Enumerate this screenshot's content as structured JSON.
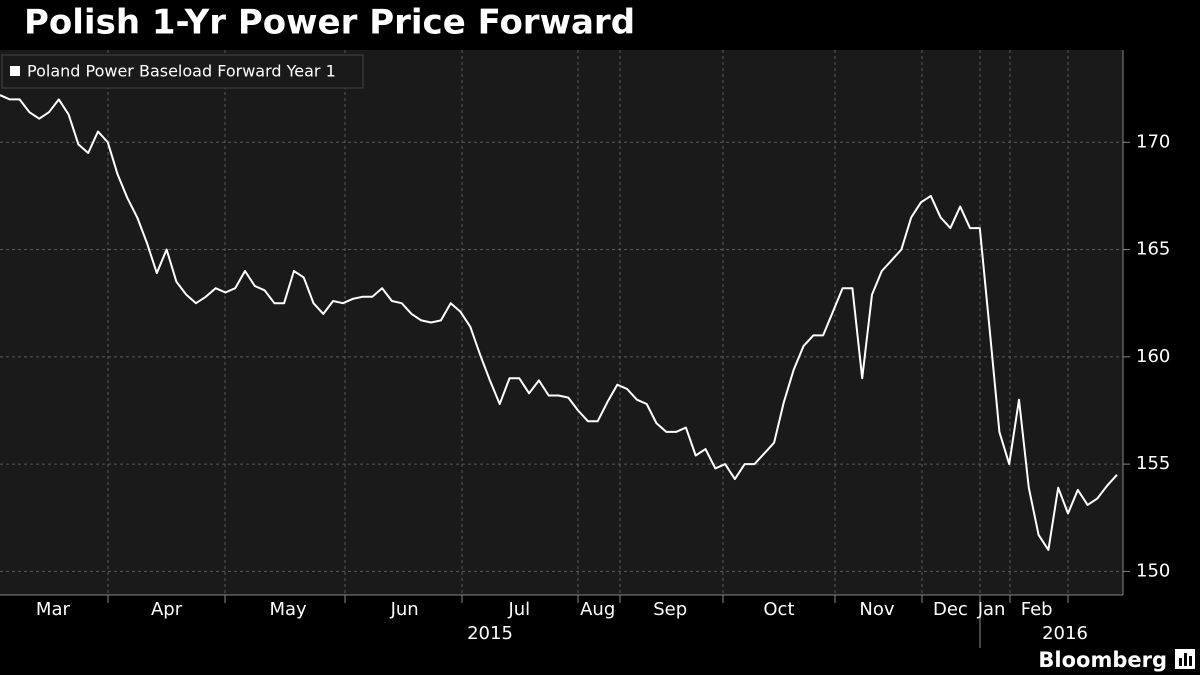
{
  "chart_data": {
    "type": "line",
    "title": "Polish 1-Yr Power Price Forward",
    "series": [
      {
        "name": "Poland Power Baseload Forward Year 1",
        "color": "#ffffff",
        "values": [
          172.2,
          172.0,
          172.0,
          171.4,
          171.1,
          171.4,
          172.0,
          171.3,
          169.9,
          169.5,
          170.5,
          170.0,
          168.5,
          167.4,
          166.5,
          165.3,
          163.9,
          165.0,
          163.5,
          162.9,
          162.5,
          162.8,
          163.2,
          163.0,
          163.2,
          164.0,
          163.3,
          163.1,
          162.5,
          162.5,
          164.0,
          163.7,
          162.5,
          162.0,
          162.6,
          162.5,
          162.7,
          162.8,
          162.8,
          163.2,
          162.6,
          162.5,
          162.0,
          161.7,
          161.6,
          161.7,
          162.5,
          162.1,
          161.4,
          160.1,
          158.9,
          157.8,
          159.0,
          159.0,
          158.3,
          158.9,
          158.2,
          158.2,
          158.1,
          157.5,
          157.0,
          157.0,
          157.9,
          158.7,
          158.5,
          158.0,
          157.8,
          156.9,
          156.5,
          156.5,
          156.7,
          155.4,
          155.7,
          154.8,
          155.0,
          154.3,
          155.0,
          155.0,
          155.5,
          156.0,
          157.9,
          159.4,
          160.5,
          161.0,
          161.0,
          162.1,
          163.2,
          163.2,
          159.0,
          162.9,
          164.0,
          164.5,
          165.0,
          166.5,
          167.2,
          167.5,
          166.5,
          166.0,
          167.0,
          166.0,
          166.0,
          161.3,
          156.5,
          155.0,
          158.0,
          153.9,
          151.7,
          151.0,
          153.9,
          152.7,
          153.8,
          153.1,
          153.4,
          154.0,
          154.5
        ]
      }
    ],
    "xticks": [
      {
        "value": 5.4,
        "label": "Mar"
      },
      {
        "value": 17,
        "label": "Apr"
      },
      {
        "value": 29.4,
        "label": "May"
      },
      {
        "value": 41.3,
        "label": "Jun"
      },
      {
        "value": 53,
        "label": "Jul"
      },
      {
        "value": 61,
        "label": "Aug"
      },
      {
        "value": 68.4,
        "label": "Sep"
      },
      {
        "value": 79.5,
        "label": "Oct"
      },
      {
        "value": 89.5,
        "label": "Nov"
      },
      {
        "value": 97,
        "label": "Dec"
      },
      {
        "value": 101.2,
        "label": "Jan"
      },
      {
        "value": 105.8,
        "label": "Feb"
      }
    ],
    "years": [
      "2015",
      "2016"
    ],
    "ylim": [
      148.9,
      174.3
    ],
    "yticks": [
      150,
      155,
      160,
      165,
      170
    ],
    "grid": true,
    "source": "Bloomberg"
  }
}
